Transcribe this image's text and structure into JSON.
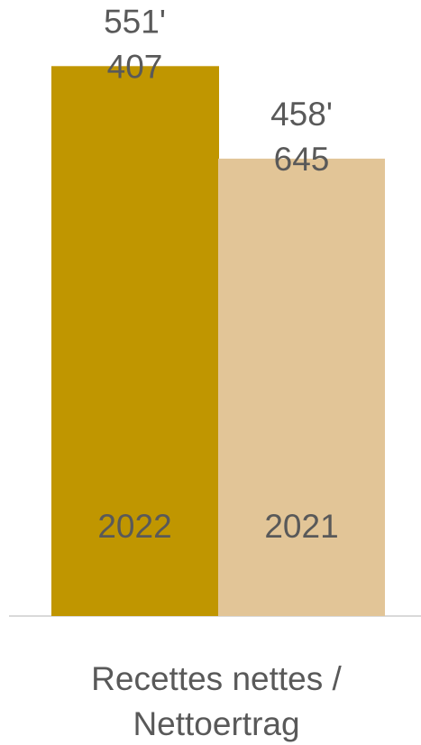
{
  "chart_data": {
    "type": "bar",
    "category": [
      "Recettes nettes /",
      "Nettoertrag"
    ],
    "series": [
      {
        "name": "2022",
        "value": 551407,
        "value_label_lines": [
          "551'",
          "407"
        ],
        "color": "#C09600"
      },
      {
        "name": "2021",
        "value": 458645,
        "value_label_lines": [
          "458'",
          "645"
        ],
        "color": "#E2C597"
      }
    ],
    "ylim": [
      0,
      600000
    ],
    "grid": false,
    "axis_color": "#D9D9D9"
  }
}
